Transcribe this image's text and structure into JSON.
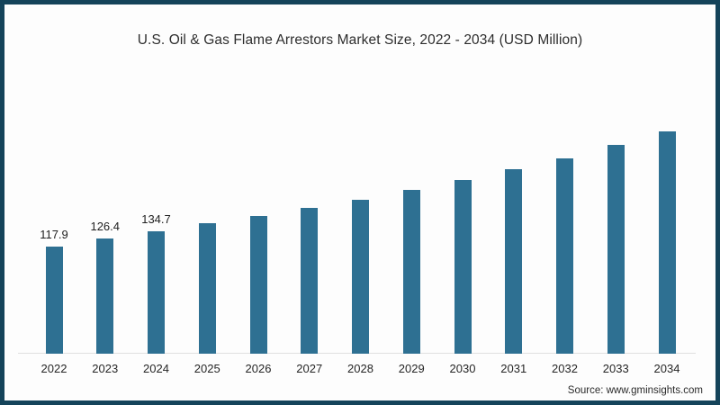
{
  "chart": {
    "title": "U.S. Oil & Gas Flame Arrestors Market Size, 2022 - 2034 (USD Million)",
    "source": "Source: www.gminsights.com"
  },
  "chart_data": {
    "type": "bar",
    "title": "U.S. Oil & Gas Flame Arrestors Market Size, 2022 - 2034 (USD Million)",
    "xlabel": "",
    "ylabel": "USD Million",
    "categories": [
      "2022",
      "2023",
      "2024",
      "2025",
      "2026",
      "2027",
      "2028",
      "2029",
      "2030",
      "2031",
      "2032",
      "2033",
      "2034"
    ],
    "values": [
      117.9,
      126.4,
      134.7,
      143.4,
      151.6,
      160.5,
      169.7,
      180.0,
      191.2,
      203.1,
      215.3,
      229.9,
      244.7
    ],
    "shown_value_labels": [
      "117.9",
      "126.4",
      "134.7",
      "",
      "",
      "",
      "",
      "",
      "",
      "",
      "",
      "",
      ""
    ],
    "ylim": [
      0,
      260
    ],
    "grid": false,
    "legend": "none",
    "bar_color": "#2e7092",
    "frame_color": "#14435a",
    "axis_line_color": "#e0e0e0",
    "source": "Source: www.gminsights.com"
  }
}
